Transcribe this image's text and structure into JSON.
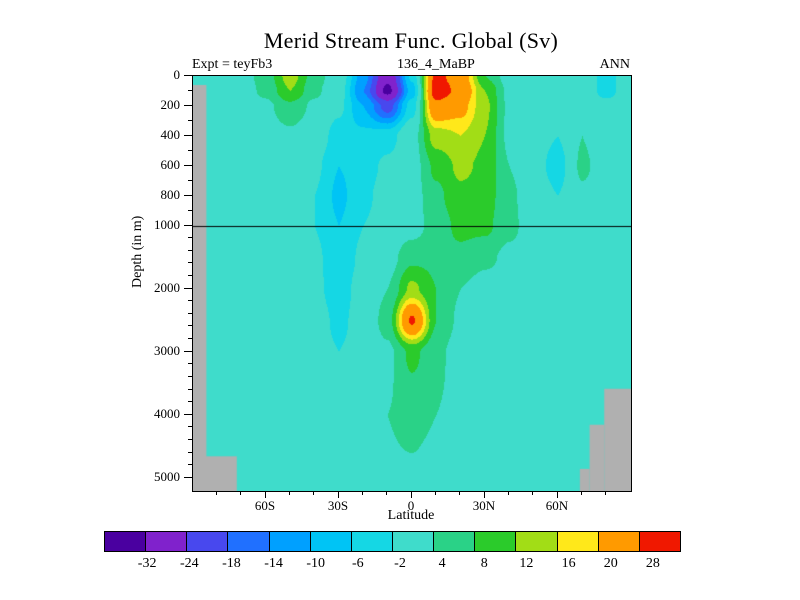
{
  "title": "Merid Stream Func. Global (Sv)",
  "header": {
    "expt_label": "Expt = teyFb3",
    "run_label": "136_4_MaBP",
    "season_label": "ANN"
  },
  "axes": {
    "y_label": "Depth (in m)",
    "x_label": "Latitude"
  },
  "chart_data": {
    "type": "heatmap",
    "title": "Merid Stream Func. Global (Sv)",
    "xlabel": "Latitude",
    "ylabel": "Depth (in m)",
    "units": "Sv",
    "lat_range": [
      -90,
      90
    ],
    "depth_range": [
      0,
      5200
    ],
    "depth_axis_break_m": 1000,
    "reference_line_depth_m": 1000,
    "x_ticks": [
      {
        "lat": -60,
        "label": "60S"
      },
      {
        "lat": -30,
        "label": "30S"
      },
      {
        "lat": 0,
        "label": "0"
      },
      {
        "lat": 30,
        "label": "30N"
      },
      {
        "lat": 60,
        "label": "60N"
      }
    ],
    "y_ticks": [
      {
        "depth": 0,
        "label": "0"
      },
      {
        "depth": 200,
        "label": "200"
      },
      {
        "depth": 400,
        "label": "400"
      },
      {
        "depth": 600,
        "label": "600"
      },
      {
        "depth": 800,
        "label": "800"
      },
      {
        "depth": 1000,
        "label": "1000"
      },
      {
        "depth": 2000,
        "label": "2000"
      },
      {
        "depth": 3000,
        "label": "3000"
      },
      {
        "depth": 4000,
        "label": "4000"
      },
      {
        "depth": 5000,
        "label": "5000"
      }
    ],
    "colorbar": {
      "boundaries": [
        -32,
        -24,
        -18,
        -14,
        -10,
        -6,
        -2,
        4,
        8,
        12,
        16,
        20,
        28
      ],
      "colors": [
        "#4a00a0",
        "#8022cc",
        "#4848ee",
        "#2070ff",
        "#00a0ff",
        "#00c4f5",
        "#15d7e4",
        "#3fdccb",
        "#2ad287",
        "#2bcb2b",
        "#a2dd16",
        "#ffe81a",
        "#ff9a00",
        "#f01800"
      ]
    },
    "grid": {
      "lats": [
        -90,
        -80,
        -70,
        -60,
        -50,
        -40,
        -30,
        -20,
        -10,
        0,
        10,
        20,
        30,
        40,
        50,
        60,
        70,
        80,
        90
      ],
      "depths": [
        0,
        100,
        200,
        400,
        600,
        800,
        1000,
        1500,
        2000,
        2500,
        3000,
        4000,
        5200
      ],
      "values": [
        [
          0,
          1,
          2,
          6,
          14,
          6,
          1,
          -12,
          -30,
          -5,
          30,
          24,
          8,
          2,
          1,
          0,
          0,
          -3,
          0
        ],
        [
          0,
          1,
          2,
          5,
          12,
          5,
          0,
          -14,
          -34,
          -8,
          32,
          26,
          12,
          3,
          1,
          0,
          0,
          -3,
          0
        ],
        [
          0,
          1,
          1,
          3,
          7,
          3,
          -1,
          -10,
          -20,
          -4,
          26,
          22,
          13,
          3,
          1,
          0,
          0,
          -1,
          0
        ],
        [
          0,
          0,
          1,
          2,
          3,
          1,
          -4,
          -5,
          -4,
          2,
          14,
          16,
          12,
          3,
          0,
          -2,
          4,
          0,
          0
        ],
        [
          0,
          0,
          0,
          1,
          1,
          -1,
          -6,
          -4,
          -1,
          2,
          9,
          13,
          11,
          4,
          0,
          -4,
          5,
          1,
          0
        ],
        [
          0,
          0,
          0,
          1,
          0,
          -2,
          -7,
          -3,
          0,
          2,
          7,
          11,
          10,
          5,
          1,
          -2,
          3,
          1,
          0
        ],
        [
          0,
          0,
          0,
          0,
          0,
          -2,
          -6,
          -2,
          0,
          2,
          6,
          9,
          9,
          5,
          2,
          0,
          2,
          1,
          0
        ],
        [
          0,
          0,
          0,
          0,
          0,
          -1,
          -5,
          -1,
          2,
          7,
          7,
          7,
          5,
          3,
          2,
          1,
          1,
          0,
          0
        ],
        [
          0,
          0,
          0,
          0,
          0,
          -1,
          -4,
          0,
          4,
          13,
          8,
          4,
          2,
          2,
          1,
          1,
          1,
          0,
          0
        ],
        [
          0,
          0,
          0,
          0,
          0,
          0,
          -3,
          0,
          6,
          29,
          8,
          3,
          2,
          1,
          1,
          1,
          1,
          0,
          0
        ],
        [
          0,
          0,
          0,
          0,
          0,
          0,
          -2,
          0,
          3,
          9,
          5,
          2,
          1,
          1,
          1,
          1,
          0,
          0,
          0
        ],
        [
          0,
          0,
          0,
          0,
          1,
          1,
          0,
          1,
          4,
          5,
          4,
          3,
          2,
          1,
          1,
          1,
          0,
          0,
          0
        ],
        [
          0,
          0,
          0,
          0,
          0,
          0,
          0,
          1,
          3,
          3,
          2,
          1,
          1,
          0,
          0,
          0,
          0,
          0,
          0
        ]
      ]
    },
    "topo_color": "#b0b0b0",
    "topo_mask": [
      {
        "lat0": -90,
        "lat1": -84.5,
        "top": 60,
        "bottom": 5200
      },
      {
        "lat0": -90,
        "lat1": -72,
        "top": 4650,
        "bottom": 5200
      },
      {
        "lat0": 69,
        "lat1": 73,
        "top": 4850,
        "bottom": 5200
      },
      {
        "lat0": 73,
        "lat1": 79,
        "top": 4150,
        "bottom": 5200
      },
      {
        "lat0": 79,
        "lat1": 90,
        "top": 3580,
        "bottom": 5200
      }
    ]
  }
}
